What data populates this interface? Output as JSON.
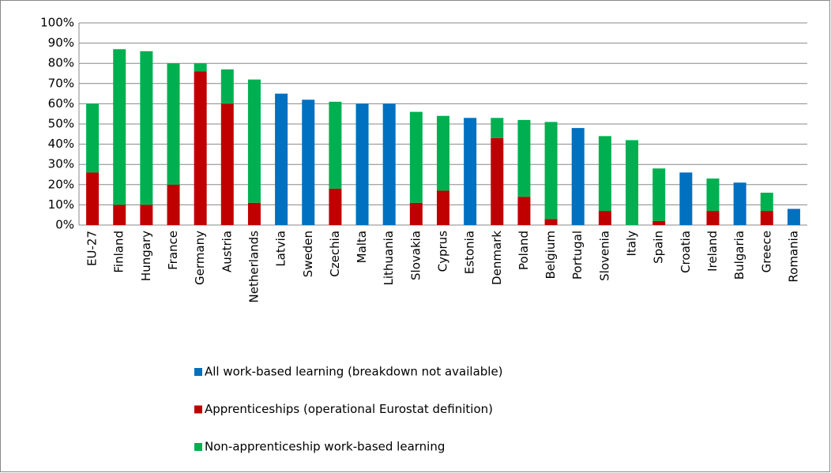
{
  "chart_data": {
    "type": "stacked_bar",
    "categories": [
      "EU-27",
      "Finland",
      "Hungary",
      "France",
      "Germany",
      "Austria",
      "Netherlands",
      "Latvia",
      "Sweden",
      "Czechia",
      "Malta",
      "Lithuania",
      "Slovakia",
      "Cyprus",
      "Estonia",
      "Denmark",
      "Poland",
      "Belgium",
      "Portugal",
      "Slovenia",
      "Italy",
      "Spain",
      "Croatia",
      "Ireland",
      "Bulgaria",
      "Greece",
      "Romania"
    ],
    "series": [
      {
        "name": "All work-based learning (breakdown not available)",
        "color": "#0070c0",
        "values": [
          null,
          null,
          null,
          null,
          null,
          null,
          null,
          65,
          62,
          null,
          60,
          60,
          null,
          null,
          53,
          null,
          null,
          null,
          48,
          null,
          null,
          null,
          26,
          null,
          21,
          null,
          8
        ]
      },
      {
        "name": "Apprenticeships (operational Eurostat definition)",
        "color": "#c00000",
        "values": [
          26,
          10,
          10,
          20,
          76,
          60,
          11,
          null,
          null,
          18,
          null,
          null,
          11,
          17,
          null,
          43,
          14,
          3,
          null,
          7,
          null,
          2,
          null,
          7,
          null,
          7,
          null
        ]
      },
      {
        "name": "Non-apprenticeship work-based learning",
        "color": "#00b050",
        "values": [
          34,
          77,
          76,
          60,
          4,
          17,
          61,
          null,
          null,
          43,
          null,
          null,
          45,
          37,
          null,
          10,
          38,
          48,
          null,
          37,
          42,
          26,
          null,
          16,
          null,
          9,
          null
        ]
      }
    ],
    "ylim": [
      0,
      100
    ],
    "yticks": [
      {
        "value": 0,
        "label": "0%"
      },
      {
        "value": 10,
        "label": "10%"
      },
      {
        "value": 20,
        "label": "20%"
      },
      {
        "value": 30,
        "label": "30%"
      },
      {
        "value": 40,
        "label": "40%"
      },
      {
        "value": 50,
        "label": "50%"
      },
      {
        "value": 60,
        "label": "60%"
      },
      {
        "value": 70,
        "label": "70%"
      },
      {
        "value": 80,
        "label": "80%"
      },
      {
        "value": 90,
        "label": "90%"
      },
      {
        "value": 100,
        "label": "100%"
      }
    ],
    "grid": true,
    "legend": "bottom"
  }
}
